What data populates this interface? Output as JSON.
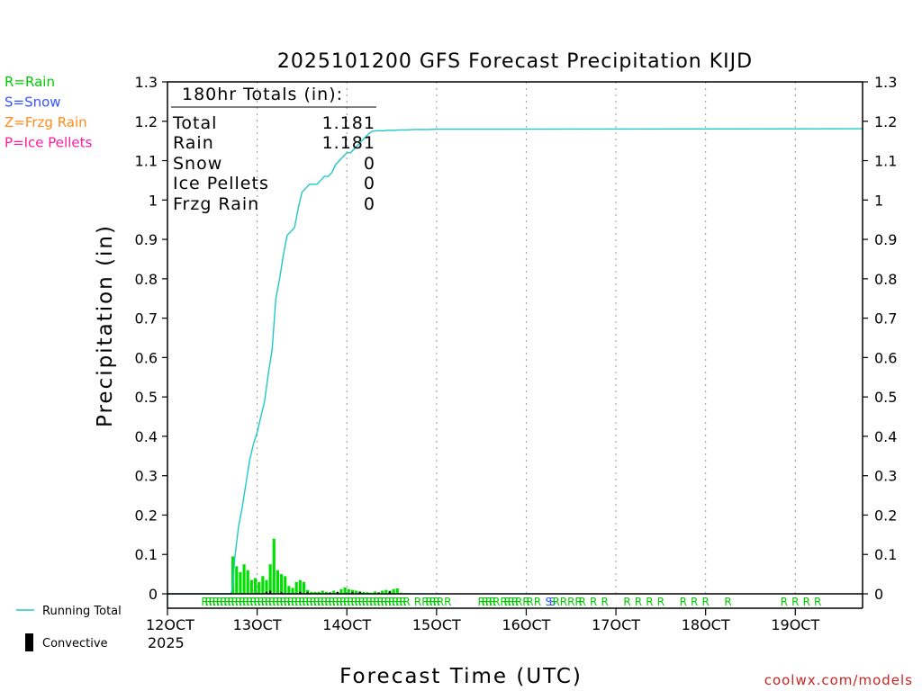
{
  "chart_data": {
    "type": "bar",
    "title": "2025101200 GFS Forecast Precipitation KIJD",
    "xlabel": "Forecast Time (UTC)",
    "ylabel": "Precipitation (in)",
    "ylim": [
      0,
      1.3
    ],
    "xlim_hours": [
      0,
      186
    ],
    "grid": "vertical dotted at each day",
    "yticks": [
      "0",
      "0.1",
      "0.2",
      "0.3",
      "0.4",
      "0.5",
      "0.6",
      "0.7",
      "0.8",
      "0.9",
      "1",
      "1.1",
      "1.2",
      "1.3"
    ],
    "xticks": [
      {
        "hour": 0,
        "label": "12OCT"
      },
      {
        "hour": 24,
        "label": "13OCT"
      },
      {
        "hour": 48,
        "label": "14OCT"
      },
      {
        "hour": 72,
        "label": "15OCT"
      },
      {
        "hour": 96,
        "label": "16OCT"
      },
      {
        "hour": 120,
        "label": "17OCT"
      },
      {
        "hour": 144,
        "label": "18OCT"
      },
      {
        "hour": 168,
        "label": "19OCT"
      }
    ],
    "year_label": "2025",
    "totals": {
      "heading": "180hr Totals (in):",
      "rows": [
        {
          "label": "Total",
          "value": "1.181"
        },
        {
          "label": "Rain",
          "value": "1.181"
        },
        {
          "label": "Snow",
          "value": "0"
        },
        {
          "label": "Ice Pellets",
          "value": "0"
        },
        {
          "label": "Frzg Rain",
          "value": "0"
        }
      ]
    },
    "legend_types": [
      {
        "text": "R=Rain",
        "color": "#00cc00"
      },
      {
        "text": "S=Snow",
        "color": "#3355ff"
      },
      {
        "text": "Z=Frzg Rain",
        "color": "#ff8c1a"
      },
      {
        "text": "P=Ice Pellets",
        "color": "#ff1aa0"
      }
    ],
    "legend_series": [
      {
        "text": "Running Total",
        "color": "#1fc8c8",
        "kind": "line"
      },
      {
        "text": "Convective",
        "color": "#000000",
        "kind": "bar"
      }
    ],
    "credit": "coolwx.com/models",
    "running_total": {
      "name": "Running Total",
      "hours": [
        0,
        17,
        17.5,
        18,
        19,
        20,
        21,
        22,
        23,
        24,
        25,
        26,
        27,
        28,
        29,
        30,
        31,
        32,
        33,
        34,
        35,
        36,
        37,
        38,
        39,
        40,
        41,
        42,
        43,
        44,
        45,
        46,
        47,
        48,
        49,
        50,
        51,
        52,
        53,
        54,
        55,
        56,
        57,
        58,
        59,
        60,
        61,
        62,
        63,
        64,
        66,
        70,
        72,
        78,
        90,
        186
      ],
      "values": [
        0,
        0,
        0.02,
        0.09,
        0.17,
        0.22,
        0.28,
        0.34,
        0.38,
        0.41,
        0.45,
        0.49,
        0.56,
        0.62,
        0.75,
        0.8,
        0.86,
        0.91,
        0.92,
        0.93,
        0.98,
        1.02,
        1.03,
        1.04,
        1.04,
        1.04,
        1.05,
        1.06,
        1.06,
        1.07,
        1.09,
        1.1,
        1.11,
        1.12,
        1.12,
        1.13,
        1.14,
        1.15,
        1.16,
        1.17,
        1.175,
        1.176,
        1.176,
        1.176,
        1.177,
        1.177,
        1.177,
        1.178,
        1.178,
        1.178,
        1.179,
        1.179,
        1.18,
        1.18,
        1.18,
        1.181
      ]
    },
    "hourly_precip": {
      "name": "Precipitation",
      "color": "#00e000",
      "hours": [
        18,
        19,
        20,
        21,
        22,
        23,
        24,
        25,
        26,
        27,
        28,
        29,
        30,
        31,
        32,
        33,
        34,
        35,
        36,
        37,
        38,
        39,
        40,
        41,
        42,
        43,
        44,
        45,
        46,
        47,
        48,
        49,
        50,
        51,
        52,
        53,
        54,
        55,
        56,
        57,
        58,
        59,
        60,
        61,
        62,
        63,
        64,
        65,
        66
      ],
      "values": [
        0.095,
        0.07,
        0.055,
        0.075,
        0.06,
        0.035,
        0.04,
        0.03,
        0.045,
        0.035,
        0.075,
        0.14,
        0.06,
        0.05,
        0.045,
        0.02,
        0.015,
        0.03,
        0.035,
        0.03,
        0.01,
        0.005,
        0.005,
        0.005,
        0.008,
        0.005,
        0.004,
        0.008,
        0.004,
        0.012,
        0.016,
        0.012,
        0.01,
        0.008,
        0.006,
        0.005,
        0.004,
        0.003,
        0.006,
        0.004,
        0.008,
        0.01,
        0.008,
        0.012,
        0.014,
        0.003,
        0.002,
        0.002,
        0.001
      ]
    },
    "convective": {
      "name": "Convective",
      "color": "#000000",
      "hours": [
        27,
        28,
        31,
        36,
        38,
        44,
        46,
        50,
        52,
        57,
        60
      ],
      "values": [
        0.005,
        0.008,
        0.004,
        0.005,
        0.004,
        0.003,
        0.005,
        0.004,
        0.005,
        0.003,
        0.006
      ]
    },
    "ptype_marks": [
      {
        "hour": 57,
        "text": "R"
      },
      {
        "hour": 58,
        "text": "R"
      },
      {
        "hour": 59,
        "text": "R"
      },
      {
        "hour": 60,
        "text": "R"
      },
      {
        "hour": 61,
        "text": "R"
      },
      {
        "hour": 62,
        "text": "R"
      },
      {
        "hour": 63,
        "text": "R"
      },
      {
        "hour": 64,
        "text": "R"
      },
      {
        "hour": 67,
        "text": "R"
      },
      {
        "hour": 69,
        "text": "R"
      },
      {
        "hour": 70,
        "text": "R"
      },
      {
        "hour": 71,
        "text": "R"
      },
      {
        "hour": 72,
        "text": "R"
      },
      {
        "hour": 73,
        "text": "R"
      },
      {
        "hour": 75,
        "text": "R"
      },
      {
        "hour": 84,
        "text": "R"
      },
      {
        "hour": 85,
        "text": "R"
      },
      {
        "hour": 86,
        "text": "R"
      },
      {
        "hour": 87,
        "text": "R"
      },
      {
        "hour": 88,
        "text": "R"
      },
      {
        "hour": 90,
        "text": "R"
      },
      {
        "hour": 91,
        "text": "R"
      },
      {
        "hour": 92,
        "text": "R"
      },
      {
        "hour": 93,
        "text": "R"
      },
      {
        "hour": 94,
        "text": "R"
      },
      {
        "hour": 96,
        "text": "R"
      },
      {
        "hour": 97,
        "text": "R"
      },
      {
        "hour": 99,
        "text": "R"
      },
      {
        "hour": 102,
        "text": "S"
      },
      {
        "hour": 103,
        "text": "S"
      },
      {
        "hour": 104,
        "text": "R"
      },
      {
        "hour": 106,
        "text": "R"
      },
      {
        "hour": 108,
        "text": "R"
      },
      {
        "hour": 110,
        "text": "R"
      },
      {
        "hour": 111,
        "text": "R"
      },
      {
        "hour": 114,
        "text": "R"
      },
      {
        "hour": 117,
        "text": "R"
      },
      {
        "hour": 123,
        "text": "R"
      },
      {
        "hour": 126,
        "text": "R"
      },
      {
        "hour": 129,
        "text": "R"
      },
      {
        "hour": 132,
        "text": "R"
      },
      {
        "hour": 138,
        "text": "R"
      },
      {
        "hour": 141,
        "text": "R"
      },
      {
        "hour": 144,
        "text": "R"
      },
      {
        "hour": 150,
        "text": "R"
      },
      {
        "hour": 165,
        "text": "R"
      },
      {
        "hour": 168,
        "text": "R"
      },
      {
        "hour": 171,
        "text": "R"
      },
      {
        "hour": 174,
        "text": "R"
      }
    ],
    "ptype_rain_run": {
      "start_hour": 10,
      "end_hour": 56,
      "text": "R"
    }
  }
}
